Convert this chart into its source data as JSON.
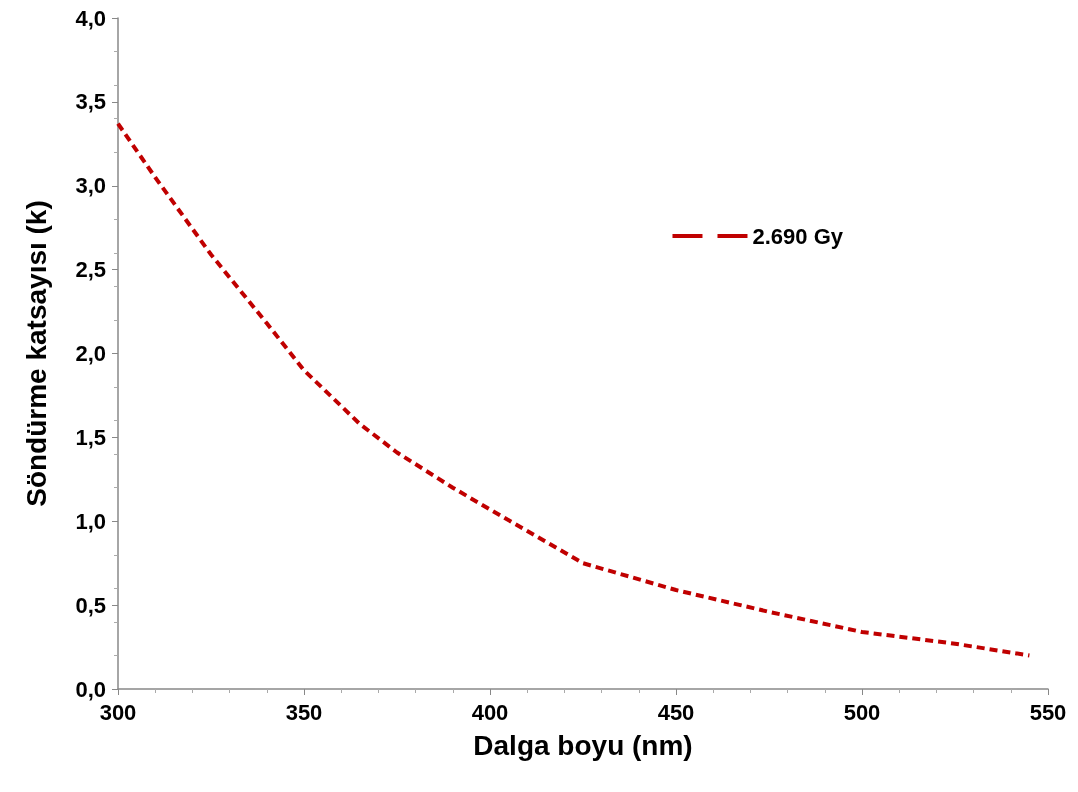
{
  "chart_data": {
    "type": "line",
    "xlabel": "Dalga boyu (nm)",
    "ylabel": "Söndürme katsayısı (k)",
    "x": [
      300,
      310,
      325,
      340,
      350,
      365,
      375,
      390,
      400,
      425,
      450,
      475,
      500,
      525,
      545
    ],
    "series": [
      {
        "name": "2.690 Gy",
        "color": "#c00000",
        "values": [
          3.37,
          3.05,
          2.59,
          2.18,
          1.9,
          1.58,
          1.41,
          1.2,
          1.07,
          0.75,
          0.59,
          0.46,
          0.34,
          0.27,
          0.2
        ]
      }
    ],
    "xlim": [
      300,
      550
    ],
    "xticks": [
      300,
      350,
      400,
      450,
      500,
      550
    ],
    "ylim": [
      0,
      4
    ],
    "yticks": [
      {
        "value": 0,
        "label": "0,0"
      },
      {
        "value": 0.5,
        "label": "0,5"
      },
      {
        "value": 1,
        "label": "1,0"
      },
      {
        "value": 1.5,
        "label": "1,5"
      },
      {
        "value": 2,
        "label": "2,0"
      },
      {
        "value": 2.5,
        "label": "2,5"
      },
      {
        "value": 3,
        "label": "3,0"
      },
      {
        "value": 3.5,
        "label": "3,5"
      },
      {
        "value": 4,
        "label": "4,0"
      }
    ],
    "grid": false,
    "legend": "top right",
    "marker": "none",
    "line_style": "dashed"
  }
}
